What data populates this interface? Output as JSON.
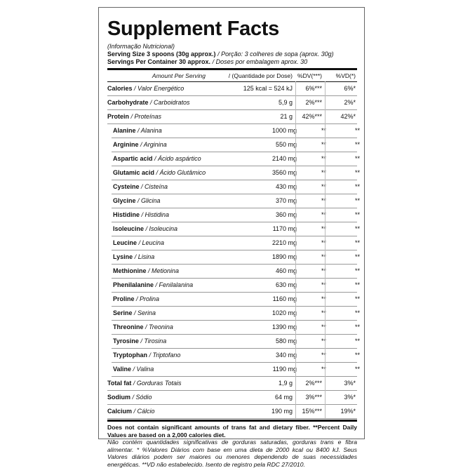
{
  "title": "Supplement Facts",
  "subtitle": "(Informação Nutricional)",
  "serving_size": {
    "label": "Serving Size 3 spoons (30g approx.)",
    "translation": "/ Porção: 3 colheres de sopa (aprox. 30g)"
  },
  "servings": {
    "label": "Servings Per Container 30 approx.",
    "translation": "/ Doses por embalagem aprox. 30"
  },
  "header": {
    "amount": "Amount Per Serving",
    "amount_pt": "/ (Quantidade por Dose)",
    "dv": "%DV(***)",
    "vd": "%VD(*)"
  },
  "rows": [
    {
      "name": "Calories",
      "name_pt": "/ Valor Energético",
      "amount": "125 kcal = 524 kJ",
      "dv": "6%***",
      "vd": "6%*"
    },
    {
      "name": "Carbohydrate",
      "name_pt": "/ Carboidratos",
      "amount": "5,9 g",
      "dv": "2%***",
      "vd": "2%*"
    },
    {
      "name": "Protein",
      "name_pt": "/ Proteínas",
      "amount": "21 g",
      "dv": "42%***",
      "vd": "42%*",
      "components": [
        {
          "name": "Alanine",
          "name_pt": "/ Alanina",
          "amount": "1000 mg",
          "dv": "**",
          "vd": "**"
        },
        {
          "name": "Arginine",
          "name_pt": "/ Arginina",
          "amount": "550 mg",
          "dv": "**",
          "vd": "**"
        },
        {
          "name": "Aspartic acid",
          "name_pt": "/ Ácido aspártico",
          "amount": "2140 mg",
          "dv": "**",
          "vd": "**"
        },
        {
          "name": "Glutamic acid",
          "name_pt": "/ Ácido Glutâmico",
          "amount": "3560 mg",
          "dv": "**",
          "vd": "**"
        },
        {
          "name": "Cysteine",
          "name_pt": "/ Cisteína",
          "amount": "430 mg",
          "dv": "**",
          "vd": "**"
        },
        {
          "name": "Glycine",
          "name_pt": "/ Glicina",
          "amount": "370 mg",
          "dv": "**",
          "vd": "**"
        },
        {
          "name": "Histidine",
          "name_pt": "/ Histidina",
          "amount": "360 mg",
          "dv": "**",
          "vd": "**"
        },
        {
          "name": "Isoleucine",
          "name_pt": "/ Isoleucina",
          "amount": "1170 mg",
          "dv": "**",
          "vd": "**"
        },
        {
          "name": "Leucine",
          "name_pt": "/ Leucina",
          "amount": "2210 mg",
          "dv": "**",
          "vd": "**"
        },
        {
          "name": "Lysine",
          "name_pt": "/ Lisina",
          "amount": "1890 mg",
          "dv": "**",
          "vd": "**"
        },
        {
          "name": "Methionine",
          "name_pt": "/ Metionina",
          "amount": "460 mg",
          "dv": "**",
          "vd": "**"
        },
        {
          "name": "Phenilalanine",
          "name_pt": "/ Fenilalanina",
          "amount": "630 mg",
          "dv": "**",
          "vd": "**"
        },
        {
          "name": "Proline",
          "name_pt": "/ Prolina",
          "amount": "1160 mg",
          "dv": "**",
          "vd": "**"
        },
        {
          "name": "Serine",
          "name_pt": "/ Serina",
          "amount": "1020 mg",
          "dv": "**",
          "vd": "**"
        },
        {
          "name": "Threonine",
          "name_pt": "/ Treonina",
          "amount": "1390 mg",
          "dv": "**",
          "vd": "**"
        },
        {
          "name": "Tyrosine",
          "name_pt": "/ Tirosina",
          "amount": "580 mg",
          "dv": "**",
          "vd": "**"
        },
        {
          "name": "Tryptophan",
          "name_pt": "/ Triptofano",
          "amount": "340 mg",
          "dv": "**",
          "vd": "**"
        },
        {
          "name": "Valine",
          "name_pt": "/ Valina",
          "amount": "1190 mg",
          "dv": "**",
          "vd": "**"
        }
      ]
    },
    {
      "name": "Total fat",
      "name_pt": "/ Gorduras Totais",
      "amount": "1,9 g",
      "dv": "2%***",
      "vd": "3%*"
    },
    {
      "name": "Sodium",
      "name_pt": "/ Sódio",
      "amount": "64 mg",
      "dv": "3%***",
      "vd": "3%*"
    },
    {
      "name": "Calcium",
      "name_pt": "/ Cálcio",
      "amount": "190 mg",
      "dv": "15%***",
      "vd": "19%*"
    }
  ],
  "footnote": {
    "en": "Does not contain significant amounts of trans fat and dietary fiber. **Percent Daily Values are based on a 2,000 calories diet.",
    "pt": "Não contém quantidades significativas de gorduras saturadas, gorduras trans e fibra alimentar. * %Valores Diários com base em uma dieta de 2000 kcal ou 8400 kJ. Seus Valores diários podem ser maiores ou menores dependendo de suas necessidades energéticas. **VD não estabelecido. Isento de registro pela RDC 27/2010."
  }
}
